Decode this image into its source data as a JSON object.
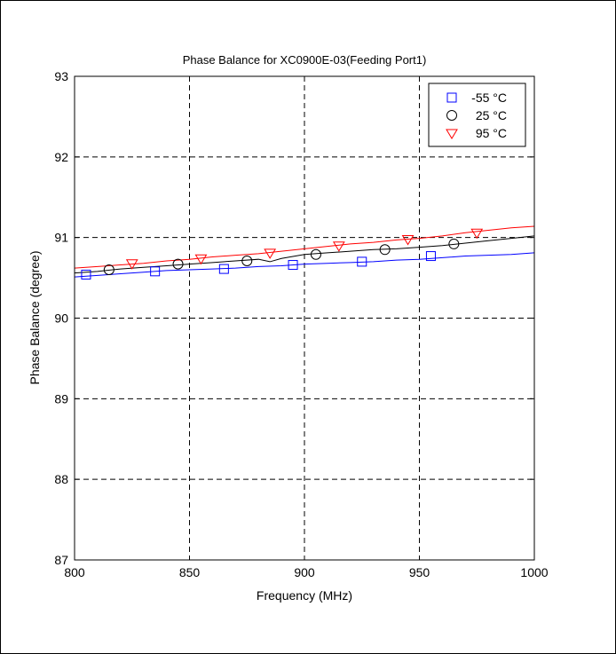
{
  "chart_data": {
    "type": "line",
    "title": "Phase Balance for XC0900E-03(Feeding Port1)",
    "xlabel": "Frequency (MHz)",
    "ylabel": "Phase Balance (degree)",
    "xlim": [
      800,
      1000
    ],
    "ylim": [
      87,
      93
    ],
    "xticks": [
      800,
      850,
      900,
      950,
      1000
    ],
    "yticks": [
      87,
      88,
      89,
      90,
      91,
      92,
      93
    ],
    "xtick_labels": [
      "800",
      "850",
      "900",
      "950",
      "1000"
    ],
    "ytick_labels": [
      "87",
      "88",
      "89",
      "90",
      "91",
      "92",
      "93"
    ],
    "grid": true,
    "legend_position": "top-right",
    "series": [
      {
        "name": "-55 °C",
        "color": "#0000ff",
        "marker": "square",
        "x": [
          800,
          810,
          820,
          830,
          840,
          850,
          860,
          870,
          880,
          890,
          900,
          910,
          920,
          930,
          940,
          950,
          960,
          970,
          980,
          990,
          1000
        ],
        "y": [
          90.51,
          90.53,
          90.55,
          90.57,
          90.59,
          90.6,
          90.61,
          90.62,
          90.64,
          90.65,
          90.67,
          90.68,
          90.69,
          90.7,
          90.72,
          90.73,
          90.75,
          90.77,
          90.78,
          90.79,
          90.81
        ],
        "marker_x": [
          805,
          835,
          865,
          895,
          925,
          955
        ],
        "marker_y": [
          90.54,
          90.58,
          90.61,
          90.66,
          90.7,
          90.77
        ]
      },
      {
        "name": "25 °C",
        "color": "#000000",
        "marker": "circle",
        "x": [
          800,
          810,
          820,
          830,
          840,
          850,
          860,
          870,
          880,
          885,
          890,
          900,
          910,
          920,
          930,
          940,
          950,
          960,
          970,
          980,
          990,
          1000
        ],
        "y": [
          90.56,
          90.58,
          90.61,
          90.63,
          90.65,
          90.67,
          90.69,
          90.71,
          90.73,
          90.7,
          90.74,
          90.79,
          90.81,
          90.83,
          90.85,
          90.86,
          90.88,
          90.9,
          90.93,
          90.96,
          90.99,
          91.02
        ],
        "marker_x": [
          815,
          845,
          875,
          905,
          935,
          965
        ],
        "marker_y": [
          90.6,
          90.67,
          90.71,
          90.79,
          90.85,
          90.92
        ]
      },
      {
        "name": "95 °C",
        "color": "#ff0000",
        "marker": "triangle-down",
        "x": [
          800,
          810,
          820,
          830,
          840,
          850,
          860,
          870,
          880,
          890,
          900,
          910,
          920,
          930,
          940,
          950,
          960,
          970,
          980,
          990,
          1000
        ],
        "y": [
          90.62,
          90.64,
          90.66,
          90.68,
          90.71,
          90.73,
          90.76,
          90.78,
          90.8,
          90.83,
          90.86,
          90.89,
          90.92,
          90.94,
          90.97,
          90.99,
          91.02,
          91.06,
          91.09,
          91.12,
          91.14
        ],
        "marker_x": [
          825,
          855,
          885,
          915,
          945,
          975
        ],
        "marker_y": [
          90.68,
          90.74,
          90.81,
          90.9,
          90.98,
          91.06
        ]
      }
    ]
  }
}
